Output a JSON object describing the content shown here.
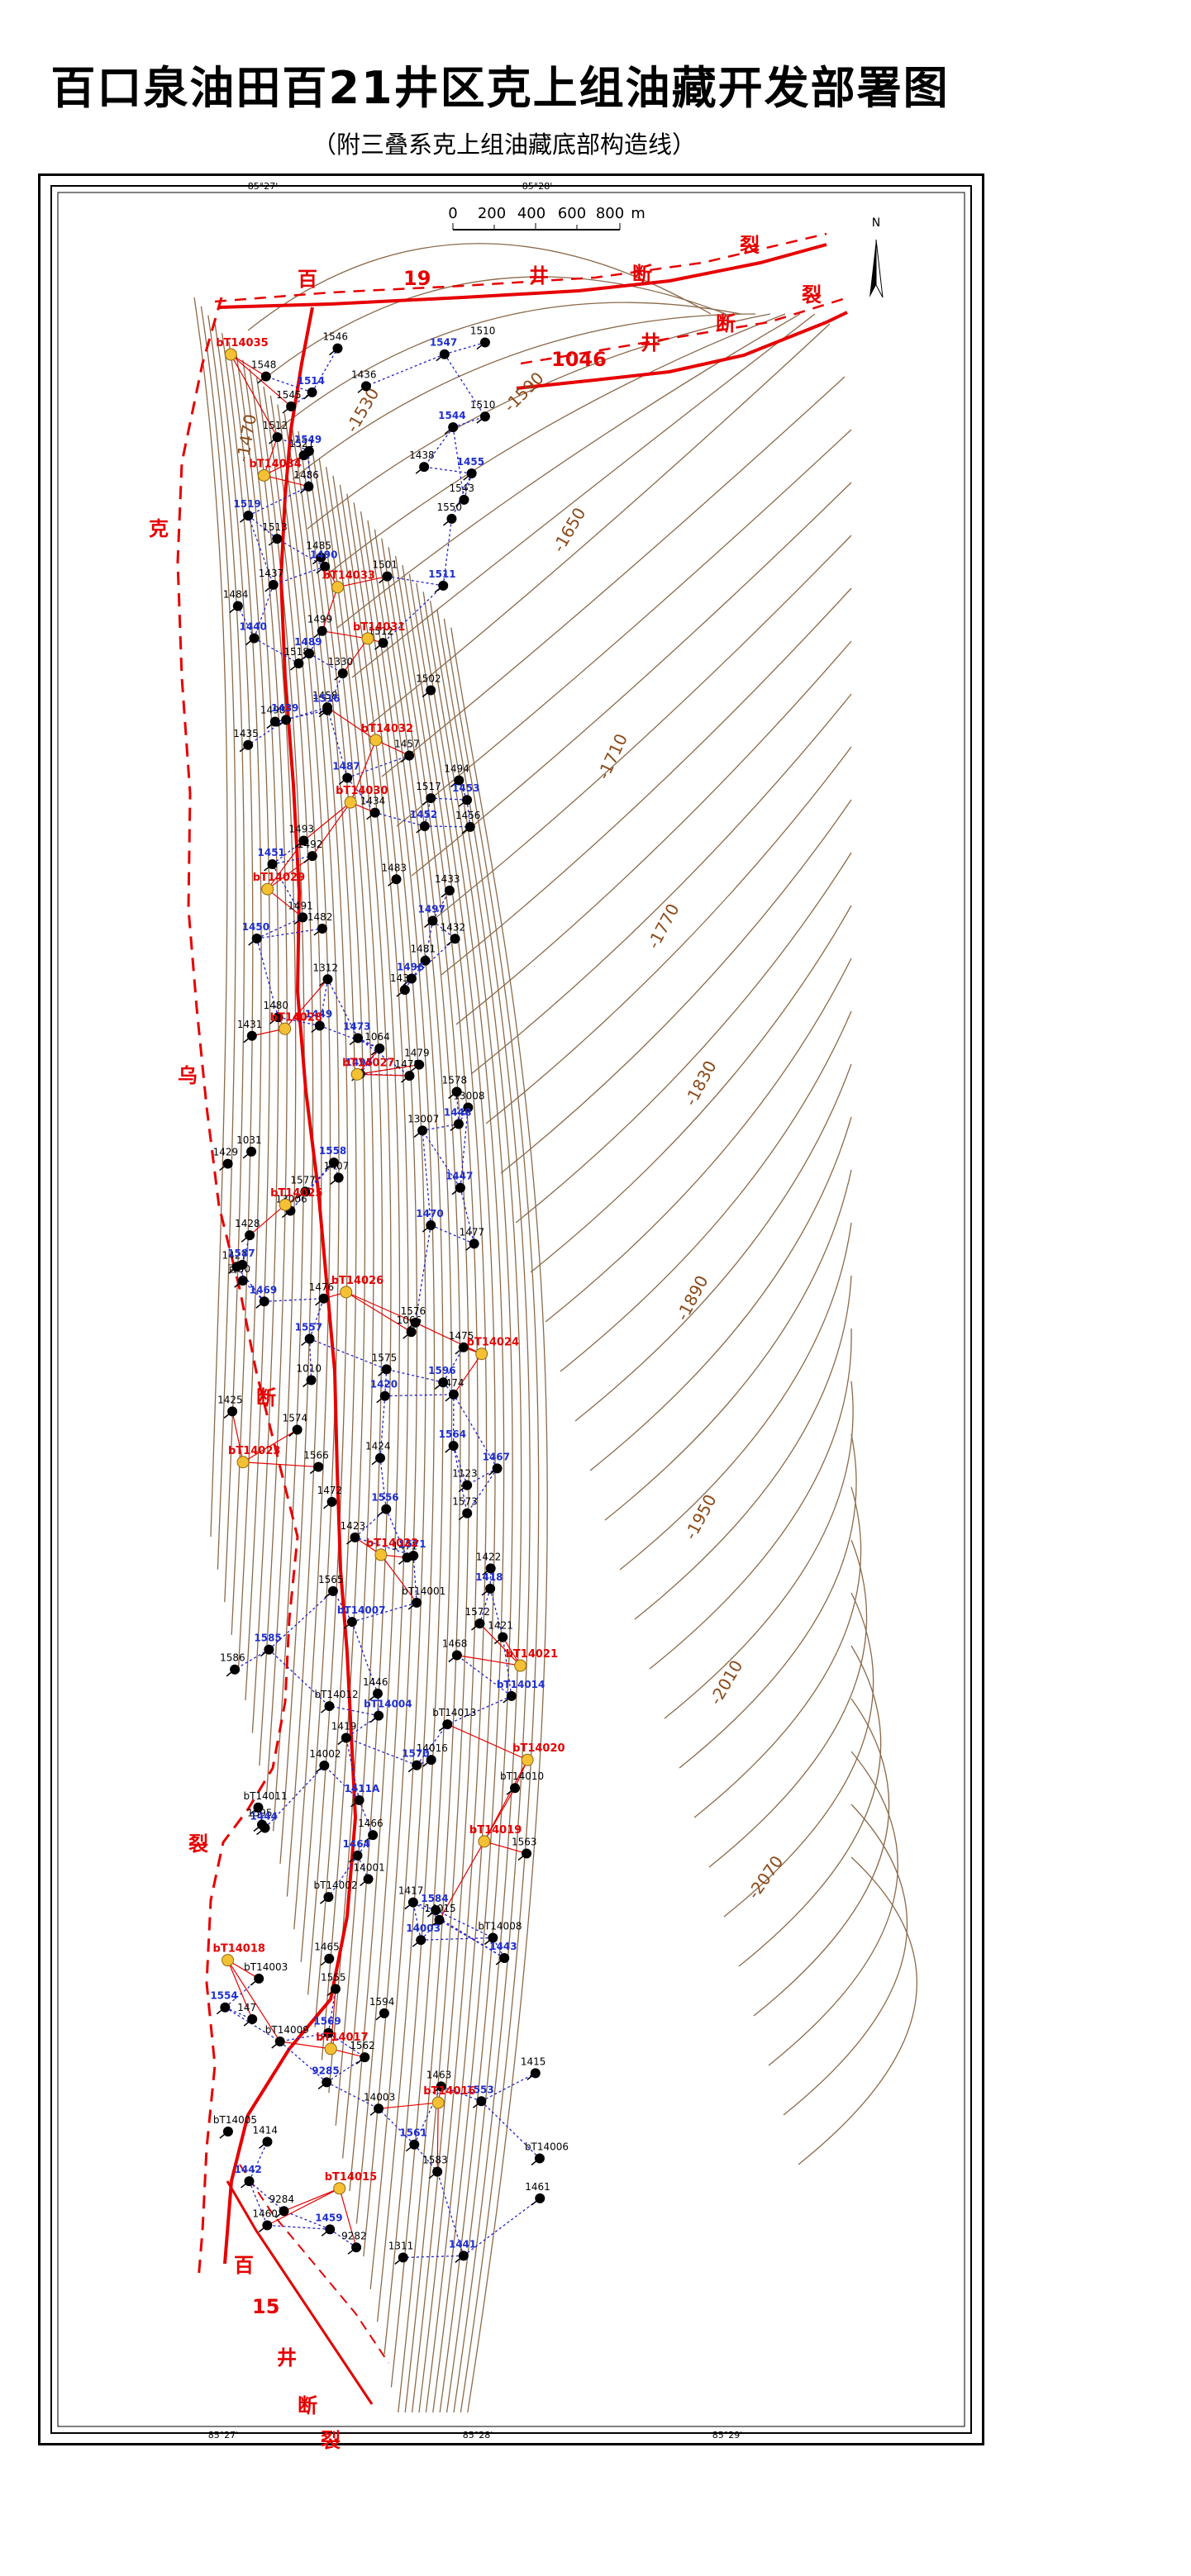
{
  "title": "百口泉油田百21井区克上组油藏开发部署图",
  "subtitle": "（附三叠系克上组油藏底部构造线）",
  "scale_bar": {
    "ticks": [
      "0",
      "200",
      "400",
      "600",
      "800"
    ],
    "unit": "m"
  },
  "north_label": "N",
  "grid_labels": {
    "top": [
      "85°27'",
      "85°28'"
    ],
    "bottom": [
      "85°27'",
      "85°28'",
      "85°29'"
    ]
  },
  "fault_labels": [
    {
      "text": "百"
    },
    {
      "text": "19"
    },
    {
      "text": "井"
    },
    {
      "text": "断"
    },
    {
      "text": "裂"
    },
    {
      "text": "1046"
    },
    {
      "text": "井"
    },
    {
      "text": "断"
    },
    {
      "text": "裂"
    },
    {
      "text": "克"
    },
    {
      "text": "乌"
    },
    {
      "text": "断"
    },
    {
      "text": "裂"
    },
    {
      "text": "百"
    },
    {
      "text": "15"
    },
    {
      "text": "井"
    },
    {
      "text": "断"
    },
    {
      "text": "裂"
    }
  ],
  "contour_labels": [
    "-1470",
    "-1530",
    "-1590",
    "-1650",
    "-1710",
    "-1770",
    "-1830",
    "-1890",
    "-1950",
    "-2010",
    "-2070"
  ],
  "colors": {
    "fault": "#e60000",
    "contour": "#8b6a4a",
    "existing_well": "#000000",
    "planned_well": "#f6c034",
    "blue_label": "#1f2fd0",
    "red_label": "#e60000",
    "blue_link": "#2222cc",
    "red_link": "#e60000"
  },
  "wells_black": [
    "1510",
    "1546",
    "1548",
    "1436",
    "1545",
    "1510",
    "1512",
    "1521",
    "1438",
    "1486",
    "1543",
    "1550",
    "1513",
    "1485",
    "1501",
    "1437",
    "1484",
    "1499",
    "1512",
    "1518",
    "1330",
    "1502",
    "1458",
    "1498",
    "1435",
    "1457",
    "1494",
    "1517",
    "1434",
    "1456",
    "1493",
    "1492",
    "1483",
    "1433",
    "1491",
    "1482",
    "1432",
    "1481",
    "1312",
    "1430",
    "1480",
    "1431",
    "1064",
    "1479",
    "1478",
    "1578",
    "13008",
    "13007",
    "1031",
    "1429",
    "1407",
    "1577",
    "13006",
    "1428",
    "1477",
    "1427",
    "百50",
    "1476",
    "1576",
    "1066",
    "1475",
    "1575",
    "1010",
    "1474",
    "1425",
    "1574",
    "1424",
    "1566",
    "1123",
    "1472",
    "1573",
    "1423",
    "1471",
    "1422",
    "1565",
    "bT14001",
    "1572",
    "1421",
    "1468",
    "1586",
    "1446",
    "bT14012",
    "bT14013",
    "1419",
    "14016",
    "14002",
    "bT14010",
    "bT14011",
    "1595",
    "1466",
    "1563",
    "14001",
    "bT14002",
    "1417",
    "14015",
    "bT14008",
    "1465",
    "bT14003",
    "1555",
    "1594",
    "147",
    "bT14009",
    "1562",
    "1415",
    "1463",
    "14003",
    "bT14005",
    "1414",
    "bT14006",
    "1583",
    "1461",
    "9284",
    "1460",
    "9282",
    "1311"
  ],
  "wells_blue": [
    "1547",
    "1514",
    "1544",
    "1549",
    "1455",
    "1519",
    "1490",
    "1511",
    "1440",
    "1489",
    "1516",
    "1439",
    "1487",
    "1453",
    "1452",
    "1451",
    "1497",
    "1450",
    "1496",
    "1449",
    "1473",
    "1495",
    "1448",
    "1558",
    "1447",
    "1470",
    "1587",
    "1469",
    "1557",
    "1596",
    "1420",
    "1564",
    "1467",
    "1556",
    "1571",
    "1418",
    "bT14007",
    "1585",
    "bT14014",
    "bT14004",
    "1570",
    "1411A",
    "1444",
    "1464",
    "1584",
    "14003",
    "1443",
    "1554",
    "1569",
    "9285",
    "1553",
    "1561",
    "1442",
    "1459",
    "1441"
  ],
  "wells_red": [
    "bT14035",
    "bT14034",
    "bT14033",
    "bT14031",
    "bT14032",
    "bT14030",
    "bT14029",
    "bT14028",
    "bT14027",
    "bT14025",
    "bT14026",
    "bT14024",
    "bT14023",
    "bT14022",
    "bT14021",
    "bT14020",
    "bT14019",
    "bT14018",
    "bT14017",
    "bT14016",
    "bT14015"
  ]
}
